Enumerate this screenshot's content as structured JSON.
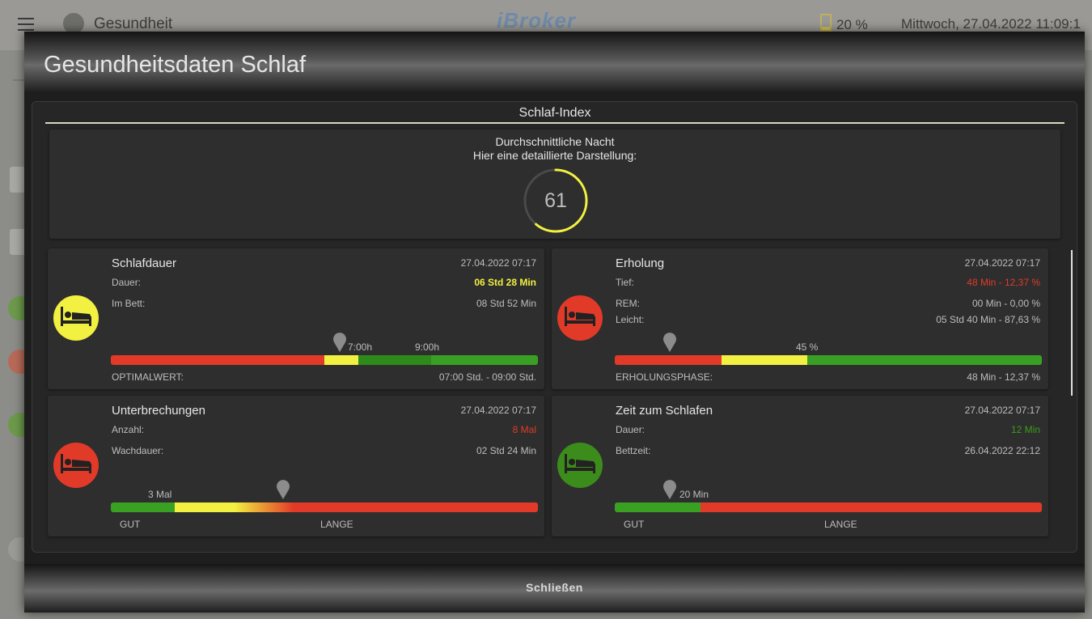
{
  "background": {
    "app_title": "Gesundheit",
    "logo": "iBroker",
    "battery": "20 %",
    "datetime": "Mittwoch, 27.04.2022   11:09:1"
  },
  "dialog": {
    "title": "Gesundheitsdaten Schlaf",
    "close_label": "Schließen",
    "panel_title": "Schlaf-Index",
    "summary": {
      "line1": "Durchschnittliche Nacht",
      "line2": "Hier eine detaillierte Darstellung:",
      "score": "61",
      "score_fraction": 0.61,
      "gauge_color": "#f2f040"
    }
  },
  "cards": {
    "schlafdauer": {
      "title": "Schlafdauer",
      "timestamp": "27.04.2022 07:17",
      "icon": "bed-icon",
      "icon_color": "#f2f040",
      "row1_label": "Dauer:",
      "row1_value": "06 Std 28 Min",
      "row2_label": "Im Bett:",
      "row2_value": "08 Std 52 Min",
      "mark1": "7:00h",
      "mark2": "9:00h",
      "foot_label": "OPTIMALWERT:",
      "foot_value": "07:00 Std. - 09:00 Std."
    },
    "erholung": {
      "title": "Erholung",
      "timestamp": "27.04.2022 07:17",
      "icon": "bed-icon",
      "icon_color": "#e23a28",
      "row1_label": "Tief:",
      "row1_value": "48 Min - 12,37 %",
      "row2_label": "REM:",
      "row2_value": "00 Min - 0,00 %",
      "row3_label": "Leicht:",
      "row3_value": "05 Std 40 Min - 87,63 %",
      "mark1": "45 %",
      "foot_label": "ERHOLUNGSPHASE:",
      "foot_value": "48 Min - 12,37 %"
    },
    "unterbrechungen": {
      "title": "Unterbrechungen",
      "timestamp": "27.04.2022 07:17",
      "icon": "bed-icon",
      "icon_color": "#e23a28",
      "row1_label": "Anzahl:",
      "row1_value": "8 Mal",
      "row2_label": "Wachdauer:",
      "row2_value": "02 Std 24 Min",
      "mark1": "3 Mal",
      "foot_left": "GUT",
      "foot_mid": "LANGE"
    },
    "zeit_zum_schlafen": {
      "title": "Zeit zum Schlafen",
      "timestamp": "27.04.2022 07:17",
      "icon": "bed-icon",
      "icon_color": "#3c8c1c",
      "row1_label": "Dauer:",
      "row1_value": "12 Min",
      "row2_label": "Bettzeit:",
      "row2_value": "26.04.2022 22:12",
      "mark1": "20 Min",
      "foot_left": "GUT",
      "foot_mid": "LANGE"
    }
  }
}
